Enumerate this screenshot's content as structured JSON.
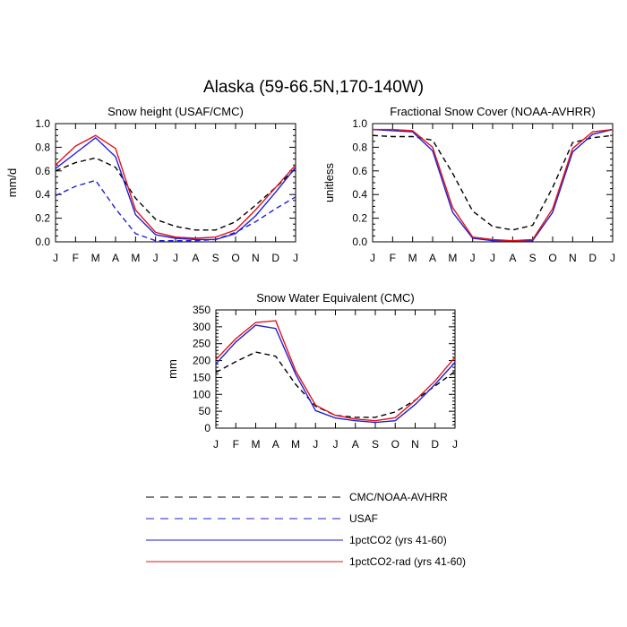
{
  "title": "Alaska (59-66.5N,170-140W)",
  "colors": {
    "black": "#000000",
    "blue": "#1f1fd6",
    "red": "#e0141e"
  },
  "chart_data": [
    {
      "type": "line",
      "title": "Snow height (USAF/CMC)",
      "ylabel": "mm/d",
      "x": [
        "J",
        "F",
        "M",
        "A",
        "M",
        "J",
        "J",
        "A",
        "S",
        "O",
        "N",
        "D",
        "J"
      ],
      "ylim": [
        0,
        1.0
      ],
      "yticks": [
        "0.0",
        "0.2",
        "0.4",
        "0.6",
        "0.8",
        "1.0"
      ],
      "series": [
        {
          "name": "CMC/NOAA-AVHRR",
          "color": "#000000",
          "dash": true,
          "values": [
            0.6,
            0.67,
            0.71,
            0.63,
            0.37,
            0.19,
            0.13,
            0.1,
            0.1,
            0.17,
            0.31,
            0.46,
            0.62
          ]
        },
        {
          "name": "USAF",
          "color": "#1f1fd6",
          "dash": true,
          "values": [
            0.39,
            0.47,
            0.52,
            0.28,
            0.07,
            0.01,
            0.01,
            0.01,
            0.02,
            0.08,
            0.17,
            0.28,
            0.38
          ]
        },
        {
          "name": "1pctCO2 (yrs 41-60)",
          "color": "#1f1fd6",
          "dash": false,
          "values": [
            0.62,
            0.75,
            0.88,
            0.72,
            0.23,
            0.06,
            0.03,
            0.02,
            0.02,
            0.07,
            0.22,
            0.42,
            0.63
          ]
        },
        {
          "name": "1pctCO2-rad (yrs 41-60)",
          "color": "#e0141e",
          "dash": false,
          "values": [
            0.65,
            0.81,
            0.9,
            0.79,
            0.27,
            0.08,
            0.04,
            0.03,
            0.04,
            0.1,
            0.27,
            0.46,
            0.65
          ]
        }
      ]
    },
    {
      "type": "line",
      "title": "Fractional Snow Cover (NOAA-AVHRR)",
      "ylabel": "unitless",
      "x": [
        "J",
        "F",
        "M",
        "A",
        "M",
        "J",
        "J",
        "A",
        "S",
        "O",
        "N",
        "D",
        "J"
      ],
      "ylim": [
        0,
        1.0
      ],
      "yticks": [
        "0.0",
        "0.2",
        "0.4",
        "0.6",
        "0.8",
        "1.0"
      ],
      "series": [
        {
          "name": "CMC/NOAA-AVHRR",
          "color": "#000000",
          "dash": true,
          "values": [
            0.9,
            0.89,
            0.89,
            0.86,
            0.58,
            0.26,
            0.13,
            0.1,
            0.14,
            0.46,
            0.84,
            0.88,
            0.9
          ]
        },
        {
          "name": "1pctCO2 (yrs 41-60)",
          "color": "#1f1fd6",
          "dash": false,
          "values": [
            0.95,
            0.94,
            0.93,
            0.77,
            0.25,
            0.03,
            0.01,
            0.01,
            0.01,
            0.25,
            0.76,
            0.91,
            0.95
          ]
        },
        {
          "name": "1pctCO2-rad (yrs 41-60)",
          "color": "#e0141e",
          "dash": false,
          "values": [
            0.95,
            0.95,
            0.94,
            0.8,
            0.29,
            0.04,
            0.02,
            0.01,
            0.02,
            0.28,
            0.79,
            0.93,
            0.95
          ]
        }
      ]
    },
    {
      "type": "line",
      "title": "Snow Water Equivalent (CMC)",
      "ylabel": "mm",
      "x": [
        "J",
        "F",
        "M",
        "A",
        "M",
        "J",
        "J",
        "A",
        "S",
        "O",
        "N",
        "D",
        "J"
      ],
      "ylim": [
        0,
        350
      ],
      "yticks": [
        "0",
        "50",
        "100",
        "150",
        "200",
        "250",
        "300",
        "350"
      ],
      "series": [
        {
          "name": "CMC/NOAA-AVHRR",
          "color": "#000000",
          "dash": true,
          "values": [
            165,
            197,
            225,
            213,
            130,
            65,
            38,
            32,
            32,
            48,
            83,
            125,
            168
          ]
        },
        {
          "name": "1pctCO2 (yrs 41-60)",
          "color": "#1f1fd6",
          "dash": false,
          "values": [
            190,
            255,
            305,
            295,
            160,
            52,
            30,
            22,
            17,
            22,
            70,
            130,
            195
          ]
        },
        {
          "name": "1pctCO2-rad (yrs 41-60)",
          "color": "#e0141e",
          "dash": false,
          "values": [
            203,
            265,
            313,
            318,
            170,
            68,
            38,
            27,
            22,
            31,
            82,
            140,
            210
          ]
        }
      ]
    }
  ],
  "legend": [
    {
      "label": "CMC/NOAA-AVHRR",
      "color": "#000000",
      "dash": true
    },
    {
      "label": "USAF",
      "color": "#1f1fd6",
      "dash": true
    },
    {
      "label": "1pctCO2 (yrs 41-60)",
      "color": "#1f1fd6",
      "dash": false
    },
    {
      "label": "1pctCO2-rad (yrs 41-60)",
      "color": "#e0141e",
      "dash": false
    }
  ]
}
